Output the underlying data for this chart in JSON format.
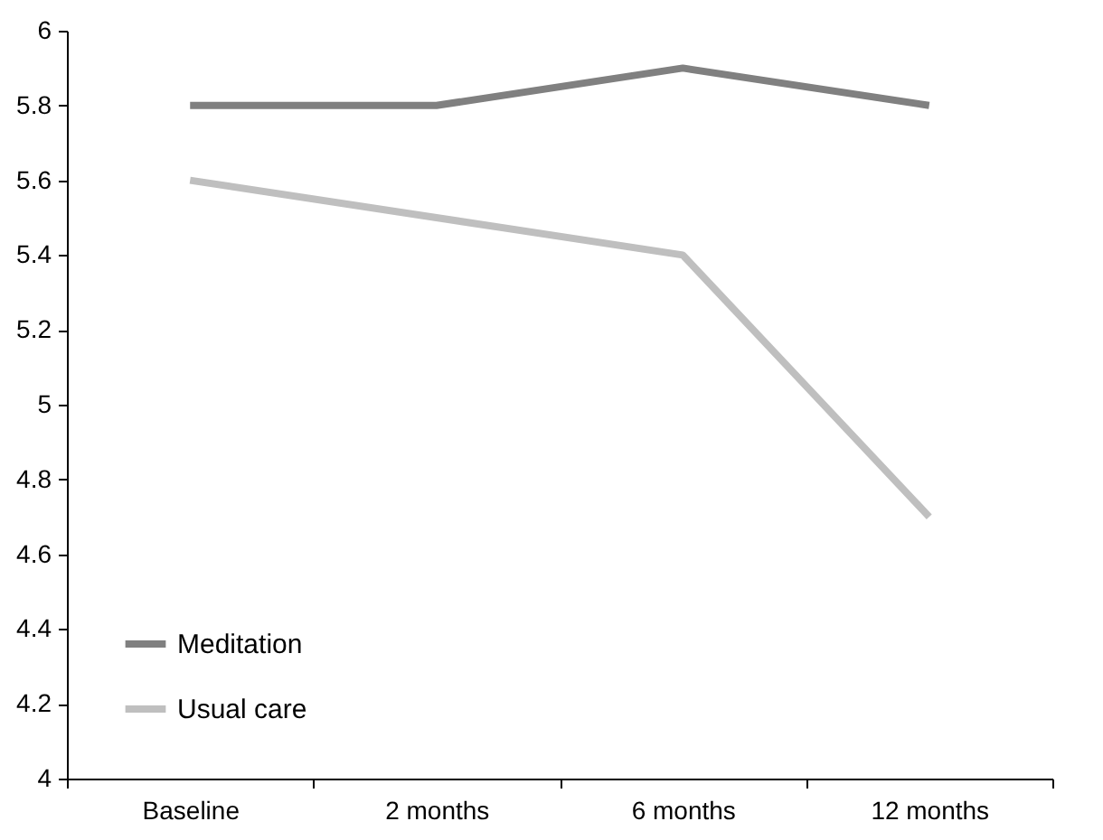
{
  "chart_data": {
    "type": "line",
    "categories": [
      "Baseline",
      "2 months",
      "6 months",
      "12 months"
    ],
    "series": [
      {
        "name": "Meditation",
        "color": "#808080",
        "values": [
          5.8,
          5.8,
          5.9,
          5.8
        ]
      },
      {
        "name": "Usual care",
        "color": "#bfbfbf",
        "values": [
          5.6,
          5.5,
          5.4,
          4.7
        ]
      }
    ],
    "ylim": [
      4,
      6
    ],
    "yticks": [
      4,
      4.2,
      4.4,
      4.6,
      4.8,
      5,
      5.2,
      5.4,
      5.6,
      5.8,
      6
    ],
    "grid": false,
    "legend": "bottom left",
    "marker": "none",
    "line_style": "solid"
  }
}
